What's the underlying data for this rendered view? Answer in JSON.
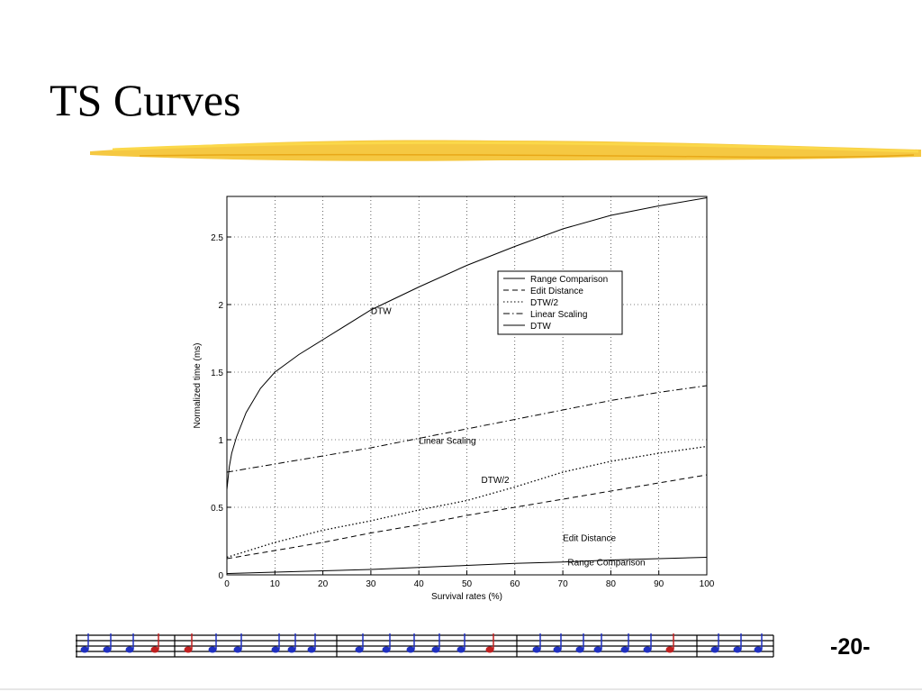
{
  "slide": {
    "title": "TS Curves",
    "page_number": "-20-"
  },
  "chart_data": {
    "type": "line",
    "xlabel": "Survival rates (%)",
    "ylabel": "Normalized time (ms)",
    "xlim": [
      0,
      100
    ],
    "ylim": [
      0,
      2.8
    ],
    "xticks": [
      0,
      10,
      20,
      30,
      40,
      50,
      60,
      70,
      80,
      90,
      100
    ],
    "yticks": [
      0,
      0.5,
      1,
      1.5,
      2,
      2.5
    ],
    "ytick_labels": [
      "0",
      "0.5",
      "1",
      "1.5",
      "2",
      "2.5"
    ],
    "grid": true,
    "legend_position": "top-right",
    "legend": [
      {
        "label": "Range Comparison",
        "style": "solid"
      },
      {
        "label": "Edit Distance",
        "style": "dashed"
      },
      {
        "label": "DTW/2",
        "style": "dotted"
      },
      {
        "label": "Linear Scaling",
        "style": "dashdot"
      },
      {
        "label": "DTW",
        "style": "solid"
      }
    ],
    "series": [
      {
        "name": "Range Comparison",
        "style": "solid",
        "x": [
          0,
          10,
          20,
          30,
          40,
          50,
          60,
          70,
          80,
          90,
          100
        ],
        "y": [
          0.01,
          0.02,
          0.03,
          0.04,
          0.055,
          0.07,
          0.085,
          0.095,
          0.11,
          0.12,
          0.13
        ]
      },
      {
        "name": "Edit Distance",
        "style": "dashed",
        "x": [
          0,
          10,
          20,
          30,
          40,
          50,
          60,
          70,
          80,
          90,
          100
        ],
        "y": [
          0.12,
          0.18,
          0.24,
          0.31,
          0.37,
          0.44,
          0.5,
          0.56,
          0.62,
          0.68,
          0.74
        ]
      },
      {
        "name": "DTW/2",
        "style": "dotted",
        "x": [
          0,
          10,
          20,
          30,
          40,
          50,
          60,
          70,
          80,
          90,
          100
        ],
        "y": [
          0.13,
          0.24,
          0.33,
          0.4,
          0.48,
          0.55,
          0.65,
          0.76,
          0.84,
          0.9,
          0.95
        ]
      },
      {
        "name": "Linear Scaling",
        "style": "dashdot",
        "x": [
          0,
          10,
          20,
          30,
          40,
          50,
          60,
          70,
          80,
          90,
          100
        ],
        "y": [
          0.76,
          0.82,
          0.88,
          0.94,
          1.01,
          1.08,
          1.15,
          1.22,
          1.29,
          1.35,
          1.4
        ]
      },
      {
        "name": "DTW",
        "style": "solid",
        "x": [
          0,
          0.5,
          1,
          2,
          4,
          7,
          10,
          15,
          20,
          30,
          40,
          50,
          60,
          70,
          80,
          90,
          100
        ],
        "y": [
          0.63,
          0.8,
          0.9,
          1.02,
          1.2,
          1.38,
          1.5,
          1.63,
          1.74,
          1.96,
          2.13,
          2.29,
          2.43,
          2.56,
          2.66,
          2.73,
          2.79
        ]
      }
    ],
    "annotations": [
      {
        "text": "DTW",
        "x": 30,
        "y": 1.93
      },
      {
        "text": "Linear Scaling",
        "x": 40,
        "y": 0.97
      },
      {
        "text": "DTW/2",
        "x": 53,
        "y": 0.68
      },
      {
        "text": "Edit Distance",
        "x": 70,
        "y": 0.25
      },
      {
        "text": "Range Comparison",
        "x": 71,
        "y": 0.07
      }
    ]
  }
}
